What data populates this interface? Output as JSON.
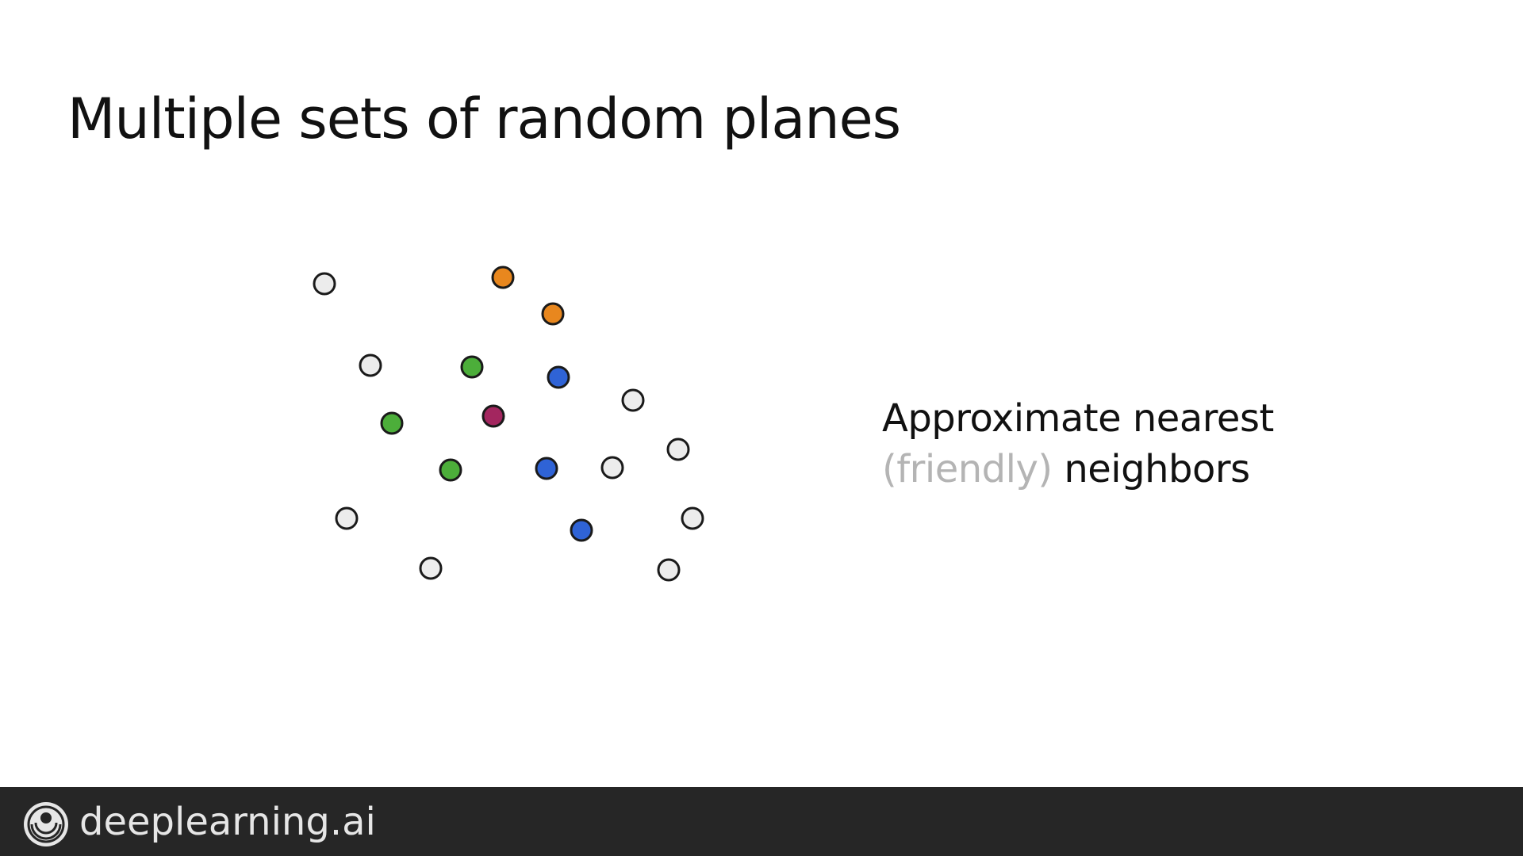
{
  "slide": {
    "title": "Multiple sets of random planes"
  },
  "caption": {
    "line1": "Approximate nearest",
    "line2_muted": "(friendly)",
    "line2_rest": " neighbors"
  },
  "footer": {
    "logo_text": "deeplearning.ai",
    "logo_icon": "deeplearning-spiral-icon"
  },
  "colors": {
    "neutral": "#ececec",
    "orange": "#e8871e",
    "green": "#4cae3a",
    "blue": "#2f63d6",
    "purple": "#a3265f",
    "outline": "#1a1a1a"
  }
}
